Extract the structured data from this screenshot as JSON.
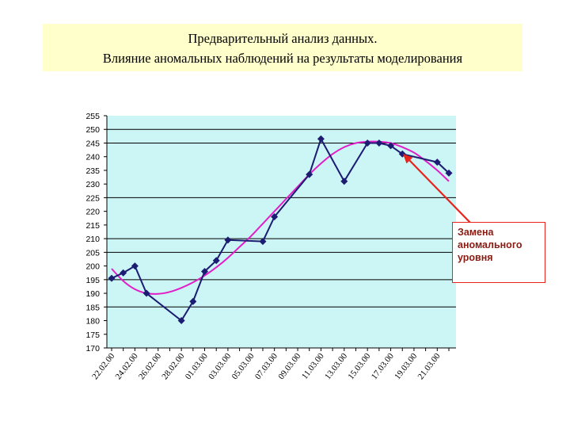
{
  "header": {
    "title_line1": "Предварительный анализ данных.",
    "title_line2": "Влияние аномальных наблюдений на результаты моделирования"
  },
  "annotation": {
    "text": "Замена аномального уровня"
  },
  "colors": {
    "title_background": "#ffffcc",
    "plot_background": "#ccf5f5",
    "data_line": "#1c1c72",
    "trend_line": "#e01fc8",
    "arrow": "#e8241c",
    "annotation_border": "#e8241c",
    "annotation_text": "#8a1b12"
  },
  "chart_data": {
    "type": "line",
    "title": "",
    "xlabel": "",
    "ylabel": "",
    "ylim": [
      170,
      255
    ],
    "y_ticks": [
      170,
      175,
      180,
      185,
      190,
      195,
      200,
      205,
      210,
      215,
      220,
      225,
      230,
      235,
      240,
      245,
      250,
      255
    ],
    "y_gridlines": [
      185,
      195,
      205,
      210,
      225,
      245,
      250
    ],
    "x_tick_labels": [
      "22.02.00",
      "24.02.00",
      "26.02.00",
      "28.02.00",
      "01.03.00",
      "03.03.00",
      "05.03.00",
      "07.03.00",
      "09.03.00",
      "11.03.00",
      "13.03.00",
      "15.03.00",
      "17.03.00",
      "19.03.00",
      "21.03.00"
    ],
    "x_range_days": [
      0,
      29
    ],
    "series": [
      {
        "kind": "observed",
        "x": [
          0,
          1,
          2,
          3,
          6,
          7,
          8,
          9,
          10,
          13,
          14,
          17,
          18,
          20,
          22,
          23,
          24,
          25,
          28,
          29
        ],
        "values": [
          195.5,
          197.5,
          200,
          190,
          180,
          187,
          198,
          202,
          209.5,
          209,
          218,
          233.5,
          246.5,
          231,
          245,
          245,
          244,
          241,
          238,
          234
        ]
      },
      {
        "kind": "trend",
        "x": [
          0,
          1,
          2,
          3,
          4,
          5,
          6,
          7,
          8,
          9,
          10,
          11,
          12,
          13,
          14,
          15,
          16,
          17,
          18,
          19,
          20,
          21,
          22,
          23,
          24,
          25,
          26,
          27,
          28,
          29
        ],
        "values": [
          199,
          194.5,
          191.5,
          190,
          189.8,
          190.5,
          192,
          194,
          196.5,
          199.5,
          203,
          207,
          211,
          215.5,
          220,
          224.5,
          229,
          233.5,
          237.5,
          241,
          243.5,
          245,
          245.5,
          245.5,
          245,
          243.5,
          241.5,
          238.5,
          235,
          231
        ]
      }
    ]
  }
}
